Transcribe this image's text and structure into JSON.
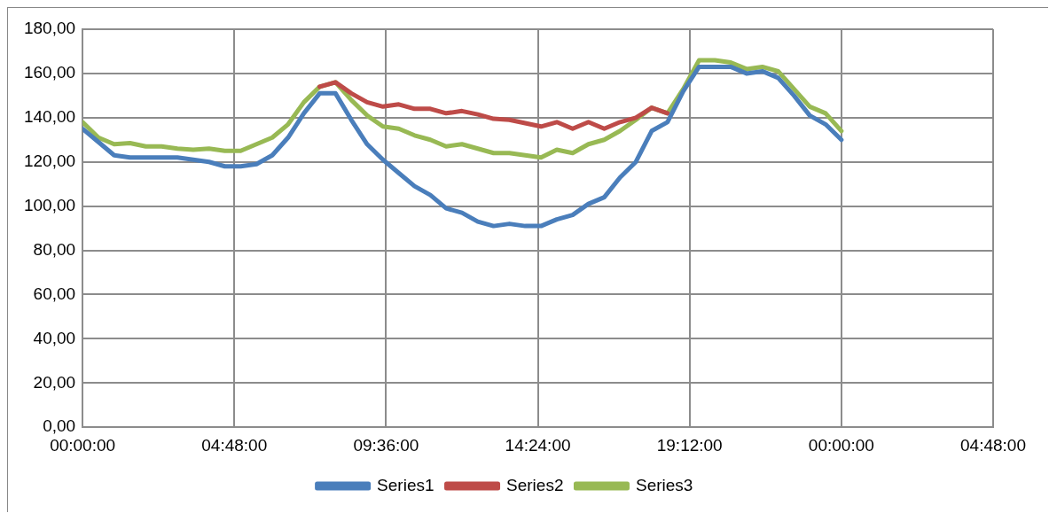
{
  "chart_data": {
    "type": "line",
    "x": [
      "--01-01T00:00",
      "--01-01T00:30",
      "--01-01T01:00",
      "--01-01T01:30",
      "--01-01T02:00",
      "--01-01T02:30",
      "--01-01T03:00",
      "--01-01T03:30",
      "--01-01T04:00",
      "--01-01T04:30",
      "--01-01T05:00",
      "--01-01T05:30",
      "--01-01T06:00",
      "--01-01T06:30",
      "--01-01T07:00",
      "--01-01T07:30",
      "--01-01T08:00",
      "--01-01T08:30",
      "--01-01T09:00",
      "--01-01T09:30",
      "--01-01T10:00",
      "--01-01T10:30",
      "--01-01T11:00",
      "--01-01T11:30",
      "--01-01T12:00",
      "--01-01T12:30",
      "--01-01T13:00",
      "--01-01T13:30",
      "--01-01T14:00",
      "--01-01T14:30",
      "--01-01T15:00",
      "--01-01T15:30",
      "--01-01T16:00",
      "--01-01T16:30",
      "--01-01T17:00",
      "--01-01T17:30",
      "--01-01T18:00",
      "--01-01T18:30",
      "--01-01T19:00",
      "--01-01T19:30",
      "--01-01T20:00",
      "--01-01T20:30",
      "--01-01T21:00",
      "--01-01T21:30",
      "--01-01T22:00",
      "--01-01T22:30",
      "--01-01T23:00",
      "--01-01T23:30",
      "--01-02T00:00"
    ],
    "series": [
      {
        "name": "Series1",
        "color": "#4a7ebb",
        "values": [
          135,
          129,
          123,
          122,
          122,
          122,
          122,
          121,
          120,
          118,
          118,
          119,
          123,
          131,
          142,
          151,
          151,
          139,
          128,
          121,
          115,
          109,
          105,
          99,
          97,
          93,
          91,
          92,
          91,
          91,
          94,
          96,
          101,
          104,
          113,
          120,
          134,
          138,
          152,
          163,
          163,
          163,
          160,
          161,
          158,
          150,
          141,
          137,
          130
        ]
      },
      {
        "name": "Series2",
        "color": "#be4b48",
        "values": [
          null,
          null,
          null,
          null,
          null,
          null,
          null,
          null,
          null,
          null,
          null,
          null,
          null,
          null,
          null,
          154,
          156,
          151,
          147,
          145,
          146,
          144,
          144,
          142,
          143,
          141.5,
          139.5,
          139,
          137.5,
          136,
          138,
          135,
          138,
          135,
          138,
          140,
          144.5,
          142,
          null,
          null,
          null,
          null,
          null,
          null,
          null,
          null,
          null,
          null,
          null
        ]
      },
      {
        "name": "Series3",
        "color": "#98b954",
        "values": [
          138,
          131,
          128,
          128.5,
          127,
          127,
          126,
          125.5,
          126,
          125,
          125,
          128,
          131,
          137,
          147,
          154,
          156,
          148,
          141,
          136,
          135,
          132,
          130,
          127,
          128,
          126,
          124,
          124,
          123,
          122,
          125.5,
          124,
          128,
          130,
          134,
          139,
          144.5,
          142,
          153,
          166,
          166,
          165,
          162,
          163,
          161,
          153,
          145,
          142,
          134
        ]
      }
    ],
    "xlim": [
      "--01-01T00:00",
      "--01-02T04:48"
    ],
    "xticks": [
      {
        "value": "--01-01T00:00",
        "label": "00:00:00"
      },
      {
        "value": "--01-01T04:48",
        "label": "04:48:00"
      },
      {
        "value": "--01-01T09:36",
        "label": "09:36:00"
      },
      {
        "value": "--01-01T14:24",
        "label": "14:24:00"
      },
      {
        "value": "--01-01T19:12",
        "label": "19:12:00"
      },
      {
        "value": "--01-02T00:00",
        "label": "00:00:00"
      },
      {
        "value": "--01-02T04:48",
        "label": "04:48:00"
      }
    ],
    "ylim": [
      0,
      180
    ],
    "yticks": [
      {
        "value": 0,
        "label": "0,00"
      },
      {
        "value": 20,
        "label": "20,00"
      },
      {
        "value": 40,
        "label": "40,00"
      },
      {
        "value": 60,
        "label": "60,00"
      },
      {
        "value": 80,
        "label": "80,00"
      },
      {
        "value": 100,
        "label": "100,00"
      },
      {
        "value": 120,
        "label": "120,00"
      },
      {
        "value": 140,
        "label": "140,00"
      },
      {
        "value": 160,
        "label": "160,00"
      },
      {
        "value": 180,
        "label": "180,00"
      }
    ],
    "grid": true,
    "legend": "bottom",
    "marker": "none",
    "line_style": "solid"
  }
}
